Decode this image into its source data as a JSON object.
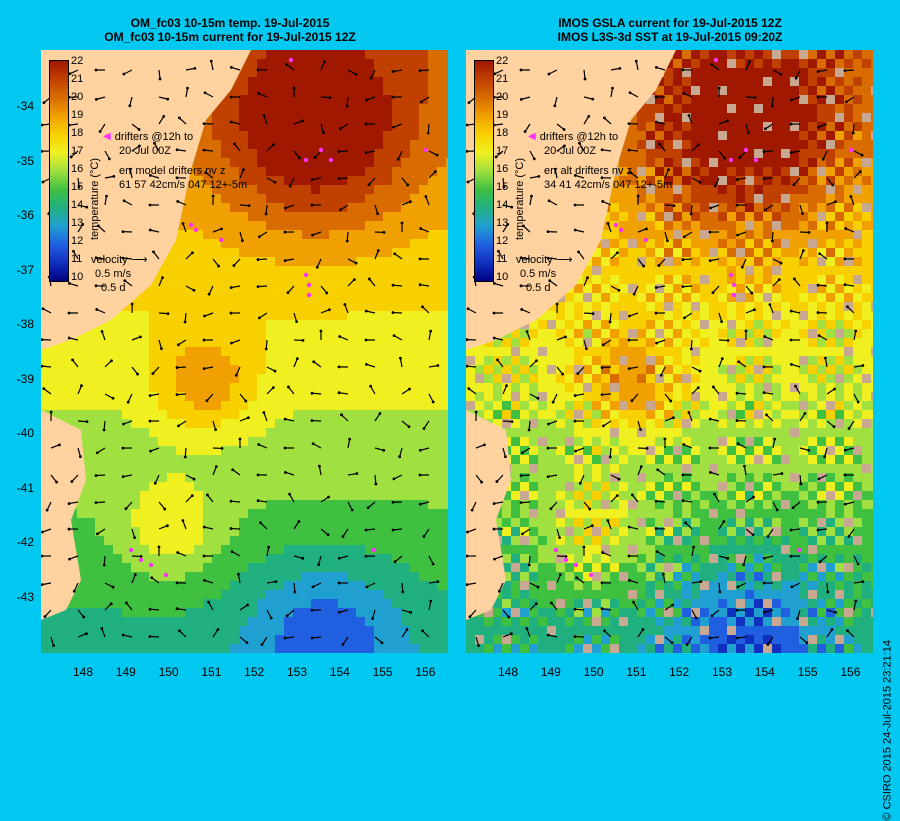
{
  "panels": [
    {
      "title_line1": "OM_fc03 10-15m temp. 19-Jul-2015",
      "title_line2": "OM_fc03 10-15m current for 19-Jul-2015 12Z",
      "colorbar_label": "temperature (°C)",
      "legend": {
        "drifters_line1": "drifters @12h to",
        "drifters_line2": "20-Jul 00Z",
        "err_line1": "err model drifters nv z",
        "err_line2": "61 57 42cm/s 047 12+-5m"
      },
      "velocity": {
        "label": "velocity",
        "speed": "0.5 m/s",
        "duration": "0.5 d"
      }
    },
    {
      "title_line1": "IMOS GSLA current for 19-Jul-2015 12Z",
      "title_line2": "IMOS L3S-3d SST at 19-Jul-2015 09:20Z",
      "colorbar_label": "temperature (°C)",
      "legend": {
        "drifters_line1": "drifters @12h to",
        "drifters_line2": "20-Jul 00Z",
        "err_line1": "err alt drifters nv z",
        "err_line2": "34 41 42cm/s 047 12+-5m"
      },
      "velocity": {
        "label": "velocity",
        "speed": "0.5 m/s",
        "duration": "0.5 d"
      }
    }
  ],
  "colorbar_ticks": [
    "22",
    "21",
    "20",
    "19",
    "18",
    "17",
    "16",
    "15",
    "14",
    "13",
    "12",
    "11",
    "10"
  ],
  "colorbar_colors": [
    "#a01800",
    "#c04000",
    "#d86c00",
    "#f0a000",
    "#f8d000",
    "#f0f020",
    "#a0e040",
    "#40c040",
    "#20b080",
    "#20a0d0",
    "#2060e0",
    "#1030c0",
    "#000080"
  ],
  "lat_ticks": [
    "-34",
    "-35",
    "-36",
    "-37",
    "-38",
    "-39",
    "-40",
    "-41",
    "-42",
    "-43"
  ],
  "lon_ticks": [
    "148",
    "149",
    "150",
    "151",
    "152",
    "153",
    "154",
    "155",
    "156"
  ],
  "credit": "© CSIRO 2015   24-Jul-2015 23:21:14",
  "colors": {
    "background": "#00c8f0",
    "land": "#ffd2a0",
    "drifter": "#ff30ff",
    "cloud": "#c8a890"
  }
}
